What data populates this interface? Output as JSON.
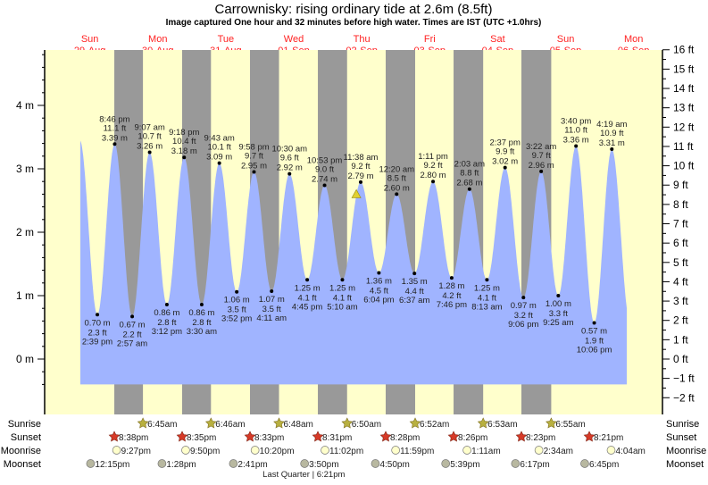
{
  "title": "Carrownisky: rising  ordinary tide at 2.6m (8.5ft)",
  "subtitle": "Image captured One hour and 32 minutes before high water. Times are IST (UTC +1.0hrs)",
  "colors": {
    "background": "#ffffcc",
    "night": "#999999",
    "tide": "#a0b4ff",
    "day_label": "#ff2222",
    "sunrise": "#b8b040",
    "sunset": "#d63a28",
    "moonrise": "#ffffcc",
    "moonset": "#b8b8a0",
    "current_marker": "#e0d030"
  },
  "chart_data": {
    "type": "area",
    "title": "Carrownisky: rising  ordinary tide at 2.6m (8.5ft)",
    "ylabel_left_unit": "m",
    "ylabel_right_unit": "ft",
    "ylim_m": [
      -0.4,
      4.9
    ],
    "yticks_m": [
      "0 m",
      "1 m",
      "2 m",
      "3 m",
      "4 m"
    ],
    "yticks_ft": [
      "−2 ft",
      "−1 ft",
      "0 ft",
      "1 ft",
      "2 ft",
      "3 ft",
      "4 ft",
      "5 ft",
      "6 ft",
      "7 ft",
      "8 ft",
      "9 ft",
      "10 ft",
      "11 ft",
      "12 ft",
      "13 ft",
      "14 ft",
      "15 ft",
      "16 ft"
    ],
    "days": [
      {
        "dow": "Sun",
        "date": "29-Aug"
      },
      {
        "dow": "Mon",
        "date": "30-Aug"
      },
      {
        "dow": "Tue",
        "date": "31-Aug"
      },
      {
        "dow": "Wed",
        "date": "01-Sep"
      },
      {
        "dow": "Thu",
        "date": "02-Sep"
      },
      {
        "dow": "Fri",
        "date": "03-Sep"
      },
      {
        "dow": "Sat",
        "date": "04-Sep"
      },
      {
        "dow": "Sun",
        "date": "05-Sep"
      },
      {
        "dow": "Mon",
        "date": "06-Sep"
      }
    ],
    "extremes": [
      {
        "type": "low",
        "date": "29-Aug",
        "time": "2:39 pm",
        "m": "0.70 m",
        "ft": "2.3 ft",
        "value": 0.7
      },
      {
        "type": "high",
        "date": "29-Aug",
        "time": "8:46 pm",
        "m": "3.39 m",
        "ft": "11.1 ft",
        "value": 3.39
      },
      {
        "type": "low",
        "date": "30-Aug",
        "time": "2:57 am",
        "m": "0.67 m",
        "ft": "2.2 ft",
        "value": 0.67
      },
      {
        "type": "high",
        "date": "30-Aug",
        "time": "9:07 am",
        "m": "3.26 m",
        "ft": "10.7 ft",
        "value": 3.26
      },
      {
        "type": "low",
        "date": "30-Aug",
        "time": "3:12 pm",
        "m": "0.86 m",
        "ft": "2.8 ft",
        "value": 0.86
      },
      {
        "type": "high",
        "date": "30-Aug",
        "time": "9:18 pm",
        "m": "3.18 m",
        "ft": "10.4 ft",
        "value": 3.18
      },
      {
        "type": "low",
        "date": "31-Aug",
        "time": "3:30 am",
        "m": "0.86 m",
        "ft": "2.8 ft",
        "value": 0.86
      },
      {
        "type": "high",
        "date": "31-Aug",
        "time": "9:43 am",
        "m": "3.09 m",
        "ft": "10.1 ft",
        "value": 3.09
      },
      {
        "type": "low",
        "date": "31-Aug",
        "time": "3:52 pm",
        "m": "1.06 m",
        "ft": "3.5 ft",
        "value": 1.06
      },
      {
        "type": "high",
        "date": "31-Aug",
        "time": "9:58 pm",
        "m": "2.95 m",
        "ft": "9.7 ft",
        "value": 2.95
      },
      {
        "type": "low",
        "date": "01-Sep",
        "time": "4:11 am",
        "m": "1.07 m",
        "ft": "3.5 ft",
        "value": 1.07
      },
      {
        "type": "high",
        "date": "01-Sep",
        "time": "10:30 am",
        "m": "2.92 m",
        "ft": "9.6 ft",
        "value": 2.92
      },
      {
        "type": "low",
        "date": "01-Sep",
        "time": "4:45 pm",
        "m": "1.25 m",
        "ft": "4.1 ft",
        "value": 1.25
      },
      {
        "type": "high",
        "date": "01-Sep",
        "time": "10:53 pm",
        "m": "2.74 m",
        "ft": "9.0 ft",
        "value": 2.74
      },
      {
        "type": "low",
        "date": "02-Sep",
        "time": "5:10 am",
        "m": "1.25 m",
        "ft": "4.1 ft",
        "value": 1.25
      },
      {
        "type": "high",
        "date": "02-Sep",
        "time": "11:38 am",
        "m": "2.79 m",
        "ft": "9.2 ft",
        "value": 2.79
      },
      {
        "type": "low",
        "date": "02-Sep",
        "time": "6:04 pm",
        "m": "1.36 m",
        "ft": "4.5 ft",
        "value": 1.36
      },
      {
        "type": "high",
        "date": "03-Sep",
        "time": "12:20 am",
        "m": "2.60 m",
        "ft": "8.5 ft",
        "value": 2.6
      },
      {
        "type": "low",
        "date": "03-Sep",
        "time": "6:37 am",
        "m": "1.35 m",
        "ft": "4.4 ft",
        "value": 1.35
      },
      {
        "type": "high",
        "date": "03-Sep",
        "time": "1:11 pm",
        "m": "2.80 m",
        "ft": "9.2 ft",
        "value": 2.8
      },
      {
        "type": "low",
        "date": "03-Sep",
        "time": "7:46 pm",
        "m": "1.28 m",
        "ft": "4.2 ft",
        "value": 1.28
      },
      {
        "type": "high",
        "date": "04-Sep",
        "time": "2:03 am",
        "m": "2.68 m",
        "ft": "8.8 ft",
        "value": 2.68
      },
      {
        "type": "low",
        "date": "04-Sep",
        "time": "8:13 am",
        "m": "1.25 m",
        "ft": "4.1 ft",
        "value": 1.25
      },
      {
        "type": "high",
        "date": "04-Sep",
        "time": "2:37 pm",
        "m": "3.02 m",
        "ft": "9.9 ft",
        "value": 3.02
      },
      {
        "type": "low",
        "date": "04-Sep",
        "time": "9:06 pm",
        "m": "0.97 m",
        "ft": "3.2 ft",
        "value": 0.97
      },
      {
        "type": "high",
        "date": "05-Sep",
        "time": "3:22 am",
        "m": "2.96 m",
        "ft": "9.7 ft",
        "value": 2.96
      },
      {
        "type": "low",
        "date": "05-Sep",
        "time": "9:25 am",
        "m": "1.00 m",
        "ft": "3.3 ft",
        "value": 1.0
      },
      {
        "type": "high",
        "date": "05-Sep",
        "time": "3:40 pm",
        "m": "3.36 m",
        "ft": "11.0 ft",
        "value": 3.36
      },
      {
        "type": "low",
        "date": "05-Sep",
        "time": "10:06 pm",
        "m": "0.57 m",
        "ft": "1.9 ft",
        "value": 0.57
      },
      {
        "type": "high",
        "date": "06-Sep",
        "time": "4:19 am",
        "m": "3.31 m",
        "ft": "10.9 ft",
        "value": 3.31
      }
    ],
    "current": {
      "date": "02-Sep",
      "time": "10:06 am",
      "value": 2.6
    }
  },
  "astro": {
    "labels": {
      "sunrise": "Sunrise",
      "sunset": "Sunset",
      "moonrise": "Moonrise",
      "moonset": "Moonset"
    },
    "sunrise": [
      {
        "date": "30-Aug",
        "time": "6:45am"
      },
      {
        "date": "31-Aug",
        "time": "6:46am"
      },
      {
        "date": "01-Sep",
        "time": "6:48am"
      },
      {
        "date": "02-Sep",
        "time": "6:50am"
      },
      {
        "date": "03-Sep",
        "time": "6:52am"
      },
      {
        "date": "04-Sep",
        "time": "6:53am"
      },
      {
        "date": "05-Sep",
        "time": "6:55am"
      }
    ],
    "sunset": [
      {
        "date": "29-Aug",
        "time": "8:38pm"
      },
      {
        "date": "30-Aug",
        "time": "8:35pm"
      },
      {
        "date": "31-Aug",
        "time": "8:33pm"
      },
      {
        "date": "01-Sep",
        "time": "8:31pm"
      },
      {
        "date": "02-Sep",
        "time": "8:28pm"
      },
      {
        "date": "03-Sep",
        "time": "8:26pm"
      },
      {
        "date": "04-Sep",
        "time": "8:23pm"
      },
      {
        "date": "05-Sep",
        "time": "8:21pm"
      }
    ],
    "moonrise": [
      {
        "date": "29-Aug",
        "time": "9:27pm"
      },
      {
        "date": "30-Aug",
        "time": "9:50pm"
      },
      {
        "date": "31-Aug",
        "time": "10:20pm"
      },
      {
        "date": "01-Sep",
        "time": "11:02pm"
      },
      {
        "date": "02-Sep",
        "time": "11:59pm"
      },
      {
        "date": "04-Sep",
        "time": "1:11am"
      },
      {
        "date": "05-Sep",
        "time": "2:34am"
      },
      {
        "date": "06-Sep",
        "time": "4:04am"
      }
    ],
    "moonset": [
      {
        "date": "29-Aug",
        "time": "12:15pm"
      },
      {
        "date": "30-Aug",
        "time": "1:28pm"
      },
      {
        "date": "31-Aug",
        "time": "2:41pm"
      },
      {
        "date": "01-Sep",
        "time": "3:50pm"
      },
      {
        "date": "02-Sep",
        "time": "4:50pm"
      },
      {
        "date": "03-Sep",
        "time": "5:39pm"
      },
      {
        "date": "04-Sep",
        "time": "6:17pm"
      },
      {
        "date": "05-Sep",
        "time": "6:45pm"
      }
    ],
    "moon_phase": {
      "date": "01-Sep",
      "time": "6:21pm",
      "label": "Last Quarter | 6:21pm"
    }
  }
}
